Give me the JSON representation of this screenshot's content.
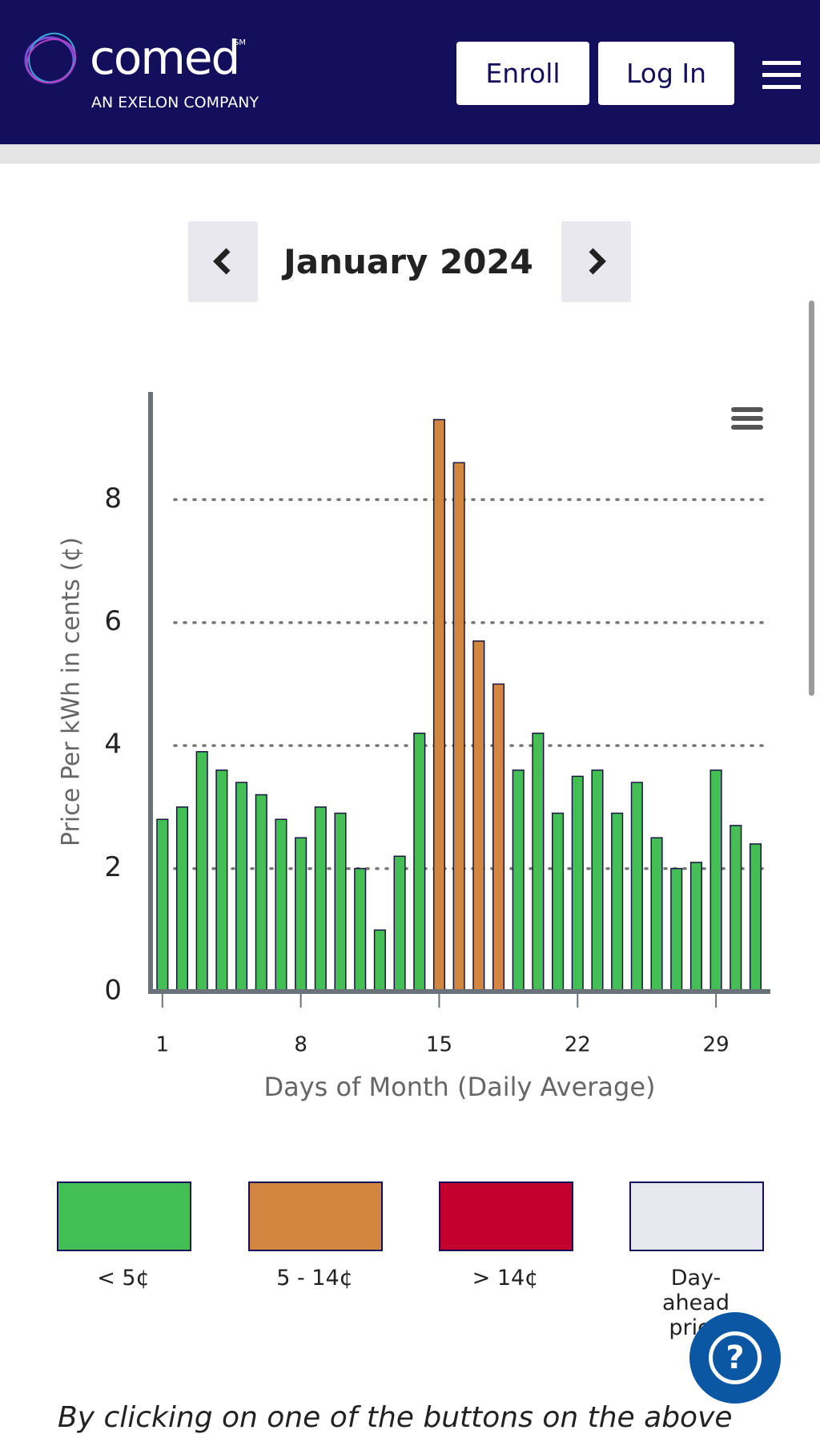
{
  "header": {
    "logo": "comed",
    "logo_mark": "SM",
    "tagline": "AN EXELON COMPANY",
    "buttons": [
      "Enroll",
      "Log In"
    ]
  },
  "chart_data": {
    "type": "bar",
    "title": "January 2024",
    "x_label": "Days of Month (Daily Average)",
    "y_label": "Price Per kWh in cents (¢)",
    "x": [
      1,
      2,
      3,
      4,
      5,
      6,
      7,
      8,
      9,
      10,
      11,
      12,
      13,
      14,
      15,
      16,
      17,
      18,
      19,
      20,
      21,
      22,
      23,
      24,
      25,
      26,
      27,
      28,
      29,
      30,
      31
    ],
    "values": [
      2.8,
      3.0,
      3.9,
      3.6,
      3.4,
      3.2,
      2.8,
      2.5,
      3.0,
      2.9,
      2.0,
      1.0,
      2.2,
      4.2,
      9.3,
      8.6,
      5.7,
      5.0,
      3.6,
      4.2,
      2.9,
      3.5,
      3.6,
      2.9,
      3.4,
      2.5,
      2.0,
      2.1,
      3.6,
      2.7,
      2.4
    ],
    "colors": [
      "#44bf55",
      "#44bf55",
      "#44bf55",
      "#44bf55",
      "#44bf55",
      "#44bf55",
      "#44bf55",
      "#44bf55",
      "#44bf55",
      "#44bf55",
      "#44bf55",
      "#44bf55",
      "#44bf55",
      "#44bf55",
      "#d38640",
      "#d38640",
      "#d38640",
      "#d38640",
      "#44bf55",
      "#44bf55",
      "#44bf55",
      "#44bf55",
      "#44bf55",
      "#44bf55",
      "#44bf55",
      "#44bf55",
      "#44bf55",
      "#44bf55",
      "#44bf55",
      "#44bf55",
      "#44bf55"
    ],
    "xlim": [
      0.4,
      31.75
    ],
    "xticks": [
      1,
      8,
      15,
      22,
      29
    ],
    "ylim": [
      0,
      9.75
    ],
    "yticks": [
      0,
      2,
      4,
      6,
      8
    ],
    "grid": true,
    "legend": [
      {
        "label": "< 5¢",
        "color": "#44bf55"
      },
      {
        "label": "5 - 14¢",
        "color": "#d38640"
      },
      {
        "label": "> 14¢",
        "color": "#c4002f"
      },
      {
        "label": "Day-ahead price",
        "color": "#e8e8f0"
      }
    ]
  },
  "help_button": "?",
  "footer_text": "By clicking on one of the buttons on the above"
}
